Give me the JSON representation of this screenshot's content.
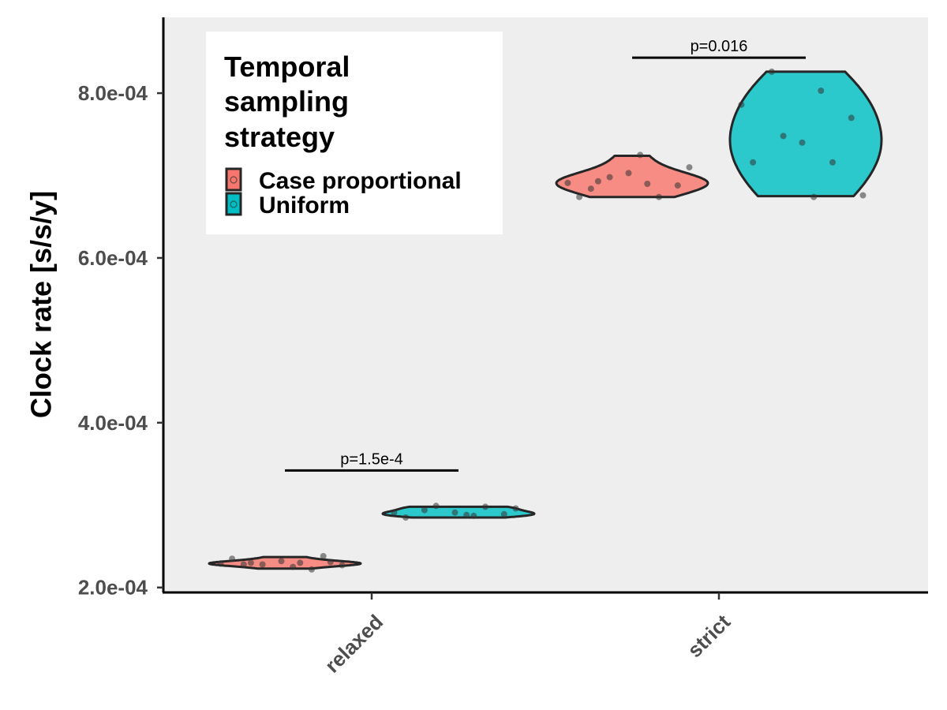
{
  "chart_data": {
    "type": "violin",
    "ylabel": "Clock rate [s/s/y]",
    "xlabel": "",
    "categories": [
      "relaxed",
      "strict"
    ],
    "ylim": [
      0.000194,
      0.000892
    ],
    "yticks": [
      0.0002,
      0.0004,
      0.0006,
      0.0008
    ],
    "ytick_labels": [
      "2.0e-04",
      "4.0e-04",
      "6.0e-04",
      "8.0e-04"
    ],
    "grid": false,
    "legend": {
      "title": "Temporal sampling strategy",
      "title_lines": [
        "Temporal",
        "sampling",
        "strategy"
      ],
      "placement": "top-left",
      "entries": [
        "Case proportional",
        "Uniform"
      ]
    },
    "series": [
      {
        "name": "Case proportional",
        "color": "#F8766D",
        "groups": [
          {
            "category": "relaxed",
            "points": [
              0.000229,
              0.00023,
              0.00023,
              0.000231,
              0.000232,
              0.000235,
              0.000222,
              0.000228,
              0.000227,
              0.000225,
              0.000228,
              0.000238
            ],
            "range": [
              0.000223,
              0.000237
            ]
          },
          {
            "category": "strict",
            "points": [
              0.000691,
              0.00069,
              0.000693,
              0.000688,
              0.000703,
              0.000674,
              0.000674,
              0.000698,
              0.00071,
              0.000725,
              0.000684
            ],
            "range": [
              0.000674,
              0.000724
            ]
          }
        ]
      },
      {
        "name": "Uniform",
        "color": "#00BFC4",
        "groups": [
          {
            "category": "relaxed",
            "points": [
              0.000291,
              0.000287,
              0.000294,
              0.000289,
              0.000291,
              0.000285,
              0.000298,
              0.000299,
              0.000296,
              0.000288
            ],
            "range": [
              0.000285,
              0.000298
            ]
          },
          {
            "category": "strict",
            "points": [
              0.000786,
              0.000803,
              0.000826,
              0.00077,
              0.00074,
              0.000716,
              0.000716,
              0.000748,
              0.000676,
              0.000674
            ],
            "range": [
              0.000675,
              0.000826
            ]
          }
        ]
      }
    ],
    "annotations": [
      {
        "category": "relaxed",
        "text": "p=1.5e-4",
        "y": 0.000342
      },
      {
        "category": "strict",
        "text": "p=0.016",
        "y": 0.000843
      }
    ]
  }
}
